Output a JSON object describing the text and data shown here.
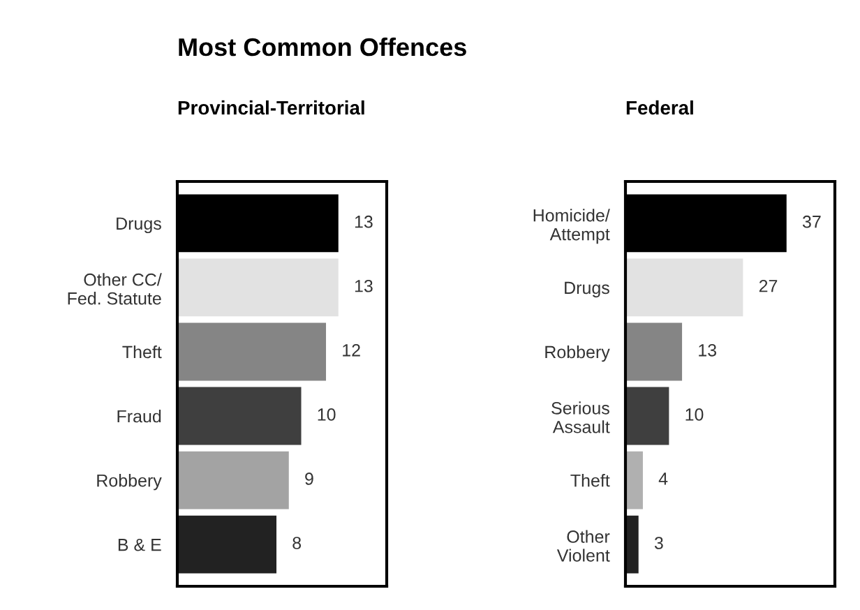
{
  "chart_data": [
    {
      "type": "bar",
      "orientation": "horizontal",
      "title": "Most Common Offences",
      "subtitle": "Provincial-Territorial",
      "categories": [
        "Drugs",
        "Other CC/\nFed. Statute",
        "Theft",
        "Fraud",
        "Robbery",
        "B & E"
      ],
      "values": [
        13,
        13,
        12,
        10,
        9,
        8
      ],
      "colors": [
        "#000000",
        "#e2e2e2",
        "#858585",
        "#3f3f3f",
        "#a3a3a3",
        "#222222"
      ],
      "data_labels": true,
      "tick_labels": "y",
      "grid": false,
      "legend": false
    },
    {
      "type": "bar",
      "orientation": "horizontal",
      "subtitle": "Federal",
      "categories": [
        "Homicide/\nAttempt",
        "Drugs",
        "Robbery",
        "Serious\nAssault",
        "Theft",
        "Other\nViolent"
      ],
      "values": [
        37,
        27,
        13,
        10,
        4,
        3
      ],
      "colors": [
        "#000000",
        "#e2e2e2",
        "#858585",
        "#3f3f3f",
        "#b0b0b0",
        "#222222"
      ],
      "data_labels": true,
      "tick_labels": "y",
      "grid": false,
      "legend": false
    }
  ]
}
